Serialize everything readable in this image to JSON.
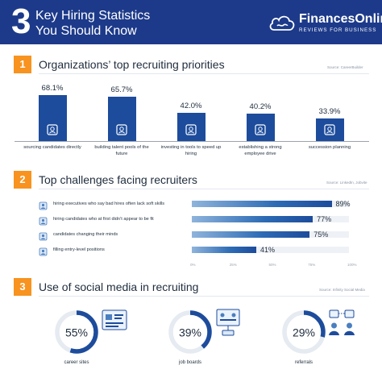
{
  "header": {
    "number": "3",
    "title_line1": "Key Hiring Statistics",
    "title_line2": "You Should Know",
    "brand": "FinancesOnline",
    "tagline": "REVIEWS FOR BUSINESS"
  },
  "sections": [
    {
      "number": "1",
      "title": "Organizations’ top recruiting priorities",
      "source": "Source: CareerBuilder"
    },
    {
      "number": "2",
      "title": "Top challenges facing recruiters",
      "source": "Source: LinkedIn, Jobvite"
    },
    {
      "number": "3",
      "title": "Use of social media in recruiting",
      "source": "Source: Infinity Social Media"
    }
  ],
  "chart_data": [
    {
      "type": "bar",
      "categories": [
        "sourcing candidates directly",
        "building talent pools of the future",
        "investing in tools to speed up hiring",
        "establishing a strong employee drive",
        "succession planning"
      ],
      "values": [
        68.1,
        65.7,
        42.0,
        40.2,
        33.9
      ],
      "value_labels": [
        "68.1%",
        "65.7%",
        "42.0%",
        "40.2%",
        "33.9%"
      ],
      "ylim": [
        0,
        100
      ],
      "colors": {
        "bar": "#1d4c9c"
      },
      "icons": [
        "clipboard-icon",
        "people-network-icon",
        "computer-tools-icon",
        "handshake-icon",
        "succession-people-icon"
      ]
    },
    {
      "type": "bar",
      "orientation": "horizontal",
      "categories": [
        "hiring executives who say bad hires often lack soft skills",
        "hiring candidates who at first didn’t appear to be fit",
        "candidates changing their minds",
        "filling entry-level positions"
      ],
      "values": [
        89,
        77,
        75,
        41
      ],
      "value_labels": [
        "89%",
        "77%",
        "75%",
        "41%"
      ],
      "xlim": [
        0,
        100
      ],
      "ticks": [
        "0%",
        "25%",
        "50%",
        "75%",
        "100%"
      ],
      "colors": {
        "bar_start": "#8fb4dc",
        "bar_end": "#1d4c9c"
      },
      "icons": [
        "org-chart-icon",
        "person-search-icon",
        "checklist-icon",
        "person-search-icon"
      ]
    },
    {
      "type": "pie",
      "style": "donut",
      "categories": [
        "career sites",
        "job boards",
        "referrals"
      ],
      "values": [
        55,
        39,
        29
      ],
      "value_labels": [
        "55%",
        "39%",
        "29%"
      ],
      "colors": {
        "filled": "#1d4c9c",
        "track": "#e6ebf2"
      },
      "icons": [
        "career-site-illustration",
        "job-board-illustration",
        "referrals-illustration"
      ]
    }
  ]
}
